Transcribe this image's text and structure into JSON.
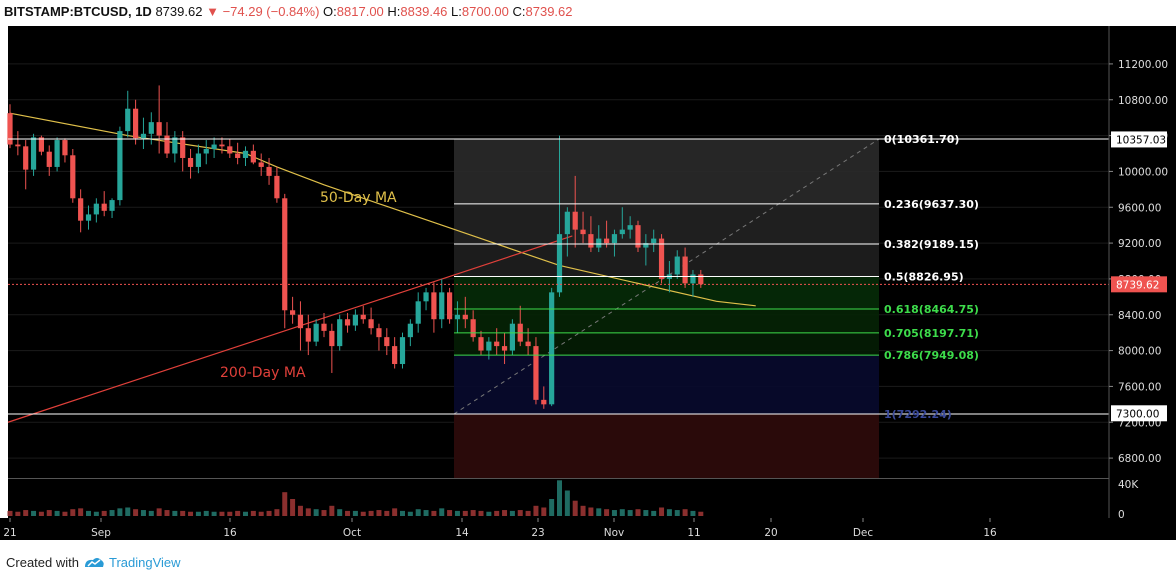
{
  "header": {
    "symbol": "BITSTAMP:BTCUSD, 1D",
    "last": "8739.62",
    "arrow": "▼",
    "change": "−74.29 (−0.84%)",
    "open_label": "O:",
    "open": "8817.00",
    "high_label": "H:",
    "high": "8839.46",
    "low_label": "L:",
    "low": "8700.00",
    "close_label": "C:",
    "close": "8739.62"
  },
  "footer": {
    "created_with": "Created with",
    "brand": "TradingView"
  },
  "colors": {
    "up": "#26a69a",
    "down": "#ef5350",
    "ma50": "#e0c04a",
    "ma200": "#e0403a",
    "fib_line": "#ffffff",
    "fib_green": "#3ddc4b",
    "background": "#000000"
  },
  "chart_data": {
    "type": "candlestick",
    "y_scale": {
      "min": 6600,
      "max": 11400
    },
    "y_ticks": [
      "11200.00",
      "10800.00",
      "10400.00",
      "10000.00",
      "9600.00",
      "9200.00",
      "8800.00",
      "8400.00",
      "8000.00",
      "7600.00",
      "7200.00",
      "6800.00"
    ],
    "x_ticks": [
      "21",
      "Sep",
      "16",
      "Oct",
      "14",
      "23",
      "Nov",
      "11",
      "20",
      "Dec",
      "16"
    ],
    "volume_ticks": [
      "40K",
      "0"
    ],
    "price_badges": [
      {
        "label": "10357.03",
        "price": 10357.03,
        "style": "white"
      },
      {
        "label": "8739.62",
        "price": 8739.62,
        "style": "red"
      },
      {
        "label": "7300.00",
        "price": 7300.0,
        "style": "white"
      }
    ],
    "current_price": 8739.62,
    "annotations": [
      {
        "text": "50-Day MA",
        "series": "ma50"
      },
      {
        "text": "200-Day MA",
        "series": "ma200"
      }
    ],
    "fib_levels": [
      {
        "label": "0(10361.70)",
        "price": 10361.7,
        "color": "white"
      },
      {
        "label": "0.236(9637.30)",
        "price": 9637.3,
        "color": "white"
      },
      {
        "label": "0.382(9189.15)",
        "price": 9189.15,
        "color": "white"
      },
      {
        "label": "0.5(8826.95)",
        "price": 8826.95,
        "color": "white"
      },
      {
        "label": "0.618(8464.75)",
        "price": 8464.75,
        "color": "green"
      },
      {
        "label": "0.705(8197.71)",
        "price": 8197.71,
        "color": "green"
      },
      {
        "label": "0.786(7949.08)",
        "price": 7949.08,
        "color": "green"
      },
      {
        "label": "1(7292.24)",
        "price": 7292.24,
        "color": "navy"
      }
    ],
    "candles": [
      [
        10650,
        10750,
        10260,
        10300
      ],
      [
        10300,
        10450,
        10180,
        10280
      ],
      [
        10280,
        10350,
        9800,
        10020
      ],
      [
        10020,
        10420,
        9950,
        10380
      ],
      [
        10380,
        10400,
        10180,
        10220
      ],
      [
        10220,
        10290,
        9950,
        10050
      ],
      [
        10050,
        10380,
        10000,
        10350
      ],
      [
        10350,
        10370,
        10100,
        10180
      ],
      [
        10180,
        10250,
        9650,
        9700
      ],
      [
        9700,
        9800,
        9320,
        9450
      ],
      [
        9450,
        9620,
        9350,
        9520
      ],
      [
        9520,
        9700,
        9430,
        9640
      ],
      [
        9640,
        9780,
        9500,
        9560
      ],
      [
        9560,
        9700,
        9480,
        9680
      ],
      [
        9680,
        10500,
        9620,
        10450
      ],
      [
        10450,
        10900,
        10380,
        10700
      ],
      [
        10700,
        10800,
        10300,
        10370
      ],
      [
        10370,
        10600,
        10250,
        10420
      ],
      [
        10420,
        10660,
        10300,
        10550
      ],
      [
        10550,
        10960,
        10200,
        10400
      ],
      [
        10400,
        10550,
        10150,
        10200
      ],
      [
        10200,
        10450,
        10100,
        10380
      ],
      [
        10380,
        10450,
        10000,
        10150
      ],
      [
        10150,
        10250,
        9920,
        10050
      ],
      [
        10050,
        10300,
        9980,
        10200
      ],
      [
        10200,
        10350,
        10080,
        10250
      ],
      [
        10250,
        10380,
        10150,
        10300
      ],
      [
        10300,
        10380,
        10200,
        10280
      ],
      [
        10280,
        10360,
        10150,
        10200
      ],
      [
        10200,
        10320,
        10080,
        10150
      ],
      [
        10150,
        10280,
        10060,
        10230
      ],
      [
        10230,
        10300,
        10080,
        10100
      ],
      [
        10100,
        10200,
        9950,
        10050
      ],
      [
        10050,
        10150,
        9850,
        9950
      ],
      [
        9950,
        10050,
        9650,
        9700
      ],
      [
        9700,
        9750,
        8250,
        8450
      ],
      [
        8450,
        8600,
        8300,
        8400
      ],
      [
        8400,
        8550,
        8000,
        8250
      ],
      [
        8250,
        8400,
        7950,
        8100
      ],
      [
        8100,
        8350,
        8050,
        8300
      ],
      [
        8300,
        8420,
        8150,
        8220
      ],
      [
        8220,
        8300,
        7750,
        8050
      ],
      [
        8050,
        8400,
        8000,
        8350
      ],
      [
        8350,
        8420,
        8200,
        8280
      ],
      [
        8280,
        8460,
        8220,
        8400
      ],
      [
        8400,
        8500,
        8300,
        8350
      ],
      [
        8350,
        8480,
        8180,
        8250
      ],
      [
        8250,
        8300,
        8000,
        8150
      ],
      [
        8150,
        8250,
        7950,
        8050
      ],
      [
        8050,
        8150,
        7800,
        7850
      ],
      [
        7850,
        8200,
        7800,
        8150
      ],
      [
        8150,
        8350,
        8050,
        8300
      ],
      [
        8300,
        8650,
        8200,
        8550
      ],
      [
        8550,
        8700,
        8450,
        8650
      ],
      [
        8650,
        8760,
        8200,
        8350
      ],
      [
        8350,
        8800,
        8250,
        8650
      ],
      [
        8650,
        8700,
        8300,
        8350
      ],
      [
        8350,
        8550,
        8200,
        8400
      ],
      [
        8400,
        8600,
        8250,
        8350
      ],
      [
        8350,
        8450,
        8100,
        8150
      ],
      [
        8150,
        8220,
        7950,
        8000
      ],
      [
        8000,
        8150,
        7900,
        8100
      ],
      [
        8100,
        8250,
        7950,
        8050
      ],
      [
        8050,
        8200,
        7850,
        8000
      ],
      [
        8000,
        8350,
        7950,
        8300
      ],
      [
        8300,
        8500,
        8050,
        8100
      ],
      [
        8100,
        8250,
        7950,
        8050
      ],
      [
        8050,
        8150,
        7400,
        7450
      ],
      [
        7450,
        7600,
        7350,
        7400
      ],
      [
        7400,
        8700,
        7380,
        8650
      ],
      [
        8650,
        10400,
        8600,
        9300
      ],
      [
        9300,
        9600,
        9050,
        9550
      ],
      [
        9550,
        9950,
        9150,
        9350
      ],
      [
        9350,
        9550,
        9200,
        9300
      ],
      [
        9300,
        9500,
        9100,
        9150
      ],
      [
        9150,
        9400,
        9100,
        9250
      ],
      [
        9250,
        9450,
        9150,
        9200
      ],
      [
        9200,
        9350,
        9050,
        9300
      ],
      [
        9300,
        9600,
        9250,
        9350
      ],
      [
        9350,
        9500,
        9250,
        9400
      ],
      [
        9400,
        9450,
        9100,
        9150
      ],
      [
        9150,
        9300,
        8950,
        9200
      ],
      [
        9200,
        9350,
        9100,
        9250
      ],
      [
        9250,
        9300,
        8750,
        8800
      ],
      [
        8800,
        9000,
        8650,
        8850
      ],
      [
        8850,
        9120,
        8800,
        9050
      ],
      [
        9050,
        9150,
        8700,
        8750
      ],
      [
        8750,
        8900,
        8600,
        8850
      ],
      [
        8850,
        8900,
        8700,
        8740
      ]
    ],
    "volumes": [
      6,
      5,
      7,
      6,
      5,
      7,
      6,
      5,
      8,
      9,
      6,
      5,
      6,
      7,
      9,
      10,
      8,
      7,
      6,
      9,
      7,
      6,
      6,
      5,
      5,
      6,
      5,
      5,
      5,
      6,
      5,
      6,
      5,
      6,
      8,
      28,
      20,
      12,
      9,
      8,
      7,
      12,
      8,
      6,
      6,
      5,
      6,
      7,
      6,
      9,
      6,
      5,
      8,
      7,
      6,
      9,
      7,
      6,
      6,
      7,
      6,
      5,
      6,
      7,
      6,
      7,
      6,
      12,
      10,
      20,
      42,
      30,
      18,
      12,
      10,
      9,
      8,
      7,
      8,
      7,
      8,
      7,
      6,
      10,
      8,
      7,
      8,
      6,
      5
    ],
    "ma50": [
      [
        0,
        10650
      ],
      [
        15,
        10400
      ],
      [
        30,
        10200
      ],
      [
        34,
        10050
      ],
      [
        40,
        9850
      ],
      [
        50,
        9550
      ],
      [
        60,
        9250
      ],
      [
        70,
        8950
      ],
      [
        80,
        8750
      ],
      [
        90,
        8550
      ],
      [
        95,
        8500
      ]
    ],
    "ma200_start": 7200,
    "ma200_end": 9280
  }
}
